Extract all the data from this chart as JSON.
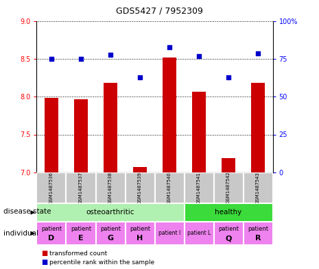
{
  "title": "GDS5427 / 7952309",
  "samples": [
    "GSM1487536",
    "GSM1487537",
    "GSM1487538",
    "GSM1487539",
    "GSM1487540",
    "GSM1487541",
    "GSM1487542",
    "GSM1487543"
  ],
  "transformed_count": [
    7.99,
    7.97,
    8.19,
    7.07,
    8.52,
    8.07,
    7.19,
    8.19
  ],
  "percentile_rank": [
    75,
    75,
    78,
    63,
    83,
    77,
    63,
    79
  ],
  "ylim_left": [
    7,
    9
  ],
  "ylim_right": [
    0,
    100
  ],
  "yticks_left": [
    7,
    7.5,
    8,
    8.5,
    9
  ],
  "yticks_right": [
    0,
    25,
    50,
    75,
    100
  ],
  "bar_color": "#CC0000",
  "dot_color": "#0000CC",
  "sample_box_color": "#C8C8C8",
  "disease_oa_color": "#B0F0B0",
  "disease_h_color": "#3ADB3A",
  "individual_color": "#EE82EE"
}
